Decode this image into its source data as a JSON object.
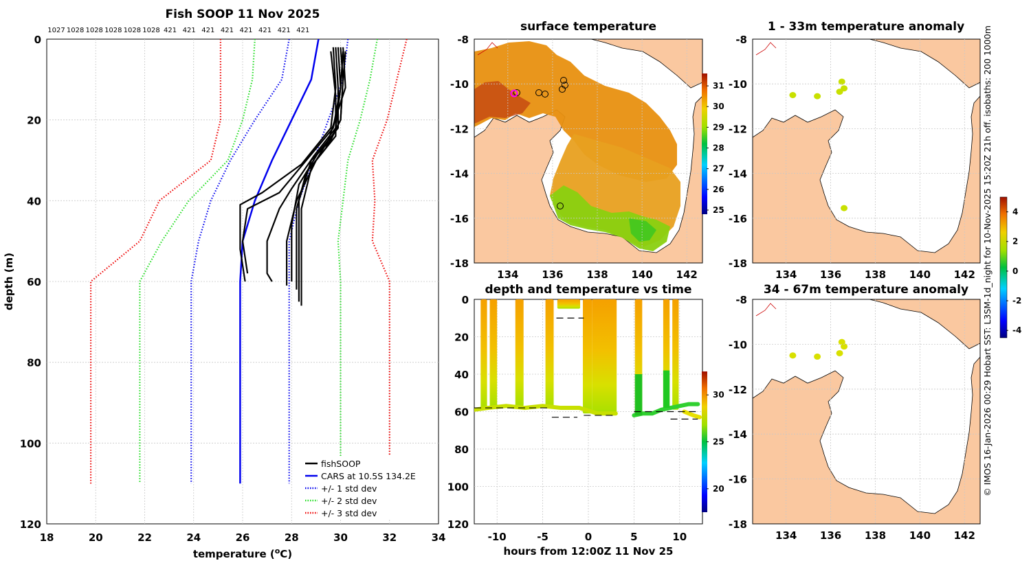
{
  "colors": {
    "land": "#fac8a0",
    "coast": "#000000",
    "png_coast": "#cc0000",
    "cars": "#0000ee",
    "std1": "#0000ee",
    "std2": "#22dd22",
    "std3": "#ee0000",
    "soop": "#000000",
    "sst_warm": "#e89010",
    "sst_hot": "#c04010",
    "sst_cool": "#8ad010",
    "marker_pink": "#ff00ff"
  },
  "side_text": "© IMOS 16-Jan-2026 00:29 Hobart SST: L3SM-1d_night for 10-Nov-2025 15:20Z 21h off. isobaths: 200  1000m",
  "chart_data": [
    {
      "id": "profile",
      "type": "line",
      "title": "Fish SOOP 11 Nov 2025",
      "xlabel": "temperature (°C)",
      "xlabel_main": "temperature (",
      "xlabel_deg": "o",
      "xlabel_unit": "C)",
      "ylabel": "depth (m)",
      "xlim": [
        18,
        34
      ],
      "ylim": [
        120,
        0
      ],
      "xticks": [
        "18",
        "20",
        "22",
        "24",
        "26",
        "28",
        "30",
        "32",
        "34"
      ],
      "yticks": [
        "0",
        "20",
        "40",
        "60",
        "80",
        "100",
        "120"
      ],
      "top_labels": [
        "1027",
        "1028",
        "1028",
        "1028",
        "1028",
        "1028",
        "421",
        "421",
        "421",
        "421",
        "421",
        "421",
        "421",
        "421"
      ],
      "series": [
        {
          "name": "CARS at 10.5S 134.2E",
          "style": "solid",
          "color": "cars",
          "x": [
            29.1,
            28.8,
            28.0,
            27.2,
            26.5,
            26.0,
            25.9,
            25.9
          ],
          "y": [
            0,
            10,
            20,
            30,
            40,
            50,
            60,
            110
          ]
        },
        {
          "name": "+/- 1 std dev",
          "style": "dotted",
          "color": "std1",
          "x": [
            27.9,
            27.6,
            26.5,
            25.5,
            24.7,
            24.2,
            23.9,
            23.9
          ],
          "y": [
            0,
            10,
            20,
            30,
            40,
            50,
            60,
            110
          ]
        },
        {
          "name": "+/- 1 std dev (upper)",
          "style": "dotted",
          "color": "std1",
          "legend": false,
          "x": [
            30.3,
            30.1,
            29.5,
            28.9,
            28.3,
            27.9,
            27.9,
            27.9
          ],
          "y": [
            0,
            10,
            20,
            30,
            40,
            50,
            60,
            110
          ]
        },
        {
          "name": "+/- 2 std dev",
          "style": "dotted",
          "color": "std2",
          "x": [
            26.5,
            26.4,
            26.0,
            25.4,
            23.8,
            22.7,
            21.8,
            21.8
          ],
          "y": [
            0,
            10,
            20,
            30,
            40,
            50,
            60,
            110
          ]
        },
        {
          "name": "+/- 2 std dev (upper)",
          "style": "dotted",
          "color": "std2",
          "legend": false,
          "x": [
            31.5,
            31.2,
            30.8,
            30.3,
            30.1,
            29.9,
            30.0,
            30.0
          ],
          "y": [
            0,
            10,
            20,
            30,
            40,
            50,
            60,
            110
          ]
        },
        {
          "name": "+/- 3 std dev",
          "style": "dotted",
          "color": "std3",
          "x": [
            25.1,
            25.1,
            25.1,
            24.7,
            22.6,
            21.8,
            19.8,
            19.8
          ],
          "y": [
            0,
            10,
            20,
            30,
            40,
            50,
            60,
            110
          ]
        },
        {
          "name": "+/- 3 std dev (upper)",
          "style": "dotted",
          "color": "std3",
          "legend": false,
          "x": [
            32.7,
            32.3,
            31.9,
            31.3,
            31.4,
            31.3,
            32.0,
            32.0
          ],
          "y": [
            0,
            10,
            20,
            30,
            40,
            50,
            60,
            110
          ]
        }
      ],
      "soop_profiles": [
        {
          "x": [
            30.0,
            30.1,
            30.0,
            29.6,
            28.8,
            28.3,
            28.3,
            28.3
          ],
          "y": [
            2,
            10,
            20,
            25,
            30,
            40,
            55,
            65
          ]
        },
        {
          "x": [
            30.2,
            30.1,
            30.0,
            29.4,
            28.6,
            28.2,
            28.2,
            28.2
          ],
          "y": [
            3,
            10,
            20,
            27,
            33,
            42,
            55,
            62
          ]
        },
        {
          "x": [
            29.8,
            29.9,
            29.9,
            29.1,
            28.3,
            28.0,
            28.0,
            28.0
          ],
          "y": [
            2,
            12,
            22,
            28,
            36,
            46,
            55,
            60
          ]
        },
        {
          "x": [
            29.9,
            30.0,
            29.8,
            28.9,
            28.0,
            27.5,
            27.0,
            27.0,
            27.2
          ],
          "y": [
            2,
            12,
            22,
            29,
            37,
            42,
            50,
            58,
            60
          ]
        },
        {
          "x": [
            30.1,
            30.0,
            29.7,
            28.6,
            27.5,
            26.2,
            26.0,
            26.2
          ],
          "y": [
            3,
            12,
            22,
            30,
            38,
            42,
            50,
            58
          ]
        },
        {
          "x": [
            29.7,
            29.8,
            29.6,
            28.4,
            26.8,
            25.9,
            25.9,
            26.1
          ],
          "y": [
            2,
            12,
            22,
            31,
            38,
            41,
            52,
            60
          ]
        },
        {
          "x": [
            30.1,
            30.2,
            29.5,
            28.8,
            28.4,
            28.4,
            28.4
          ],
          "y": [
            2,
            12,
            25,
            32,
            42,
            55,
            66
          ]
        },
        {
          "x": [
            29.6,
            29.8,
            29.8,
            29.0,
            28.2,
            27.8,
            27.8
          ],
          "y": [
            3,
            14,
            24,
            30,
            40,
            50,
            61
          ]
        }
      ],
      "legend": [
        "fishSOOP",
        "CARS at 10.5S 134.2E",
        "+/- 1 std dev",
        "+/- 2 std dev",
        "+/- 3 std dev"
      ]
    },
    {
      "id": "sst_map",
      "type": "heatmap",
      "title": "surface temperature",
      "xlim": [
        132.5,
        142.7
      ],
      "ylim": [
        -18,
        -8
      ],
      "xticks": [
        "134",
        "136",
        "138",
        "140",
        "142"
      ],
      "yticks": [
        "-8",
        "-10",
        "-12",
        "-14",
        "-16",
        "-18"
      ],
      "colorbar_ticks": [
        "31",
        "30",
        "29",
        "28",
        "27",
        "26",
        "25"
      ],
      "colorbar_range": [
        24.8,
        31.6
      ]
    },
    {
      "id": "time_depth",
      "type": "scatter",
      "title": "depth and temperature vs time",
      "xlabel": "hours from 12:00Z 11 Nov 25",
      "xlim": [
        -12.5,
        12.5
      ],
      "ylim": [
        120,
        0
      ],
      "xticks": [
        "-10",
        "-5",
        "0",
        "5",
        "10"
      ],
      "yticks": [
        "0",
        "20",
        "40",
        "60",
        "80",
        "100",
        "120"
      ],
      "colorbar_ticks": [
        "30",
        "25",
        "20"
      ],
      "colorbar_range": [
        17.5,
        32.5
      ]
    },
    {
      "id": "anom_1_33",
      "type": "heatmap",
      "title": "1 - 33m temperature anomaly",
      "xlim": [
        132.5,
        142.7
      ],
      "ylim": [
        -18,
        -8
      ],
      "xticks": [
        "134",
        "136",
        "138",
        "140",
        "142"
      ],
      "yticks": [
        "-8",
        "-10",
        "-12",
        "-14",
        "-16",
        "-18"
      ],
      "points": [
        [
          134.3,
          -10.5
        ],
        [
          135.4,
          -10.55
        ],
        [
          136.4,
          -10.35
        ],
        [
          136.5,
          -9.9
        ],
        [
          136.6,
          -10.2
        ],
        [
          136.6,
          -15.55
        ]
      ]
    },
    {
      "id": "anom_34_67",
      "type": "heatmap",
      "title": "34 - 67m temperature anomaly",
      "xlim": [
        132.5,
        142.7
      ],
      "ylim": [
        -18,
        -8
      ],
      "xticks": [
        "134",
        "136",
        "138",
        "140",
        "142"
      ],
      "yticks": [
        "-8",
        "-10",
        "-12",
        "-14",
        "-16",
        "-18"
      ],
      "points": [
        [
          134.3,
          -10.5
        ],
        [
          135.4,
          -10.55
        ],
        [
          136.4,
          -10.4
        ],
        [
          136.5,
          -9.9
        ],
        [
          136.6,
          -10.1
        ]
      ],
      "colorbar_ticks": [
        "4",
        "2",
        "0",
        "-2",
        "-4"
      ],
      "colorbar_range": [
        -4.5,
        5.0
      ]
    }
  ]
}
